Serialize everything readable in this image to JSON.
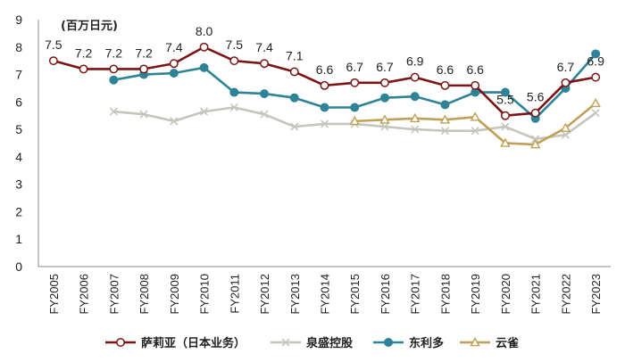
{
  "chart_data": {
    "type": "line",
    "unit_label": "(百万日元)",
    "ylim": [
      0,
      9
    ],
    "yticks": [
      0,
      1,
      2,
      3,
      4,
      5,
      6,
      7,
      8,
      9
    ],
    "categories": [
      "FY2005",
      "FY2006",
      "FY2007",
      "FY2008",
      "FY2009",
      "FY2010",
      "FY2011",
      "FY2012",
      "FY2013",
      "FY2014",
      "FY2015",
      "FY2016",
      "FY2017",
      "FY2018",
      "FY2019",
      "FY2020",
      "FY2021",
      "FY2022",
      "FY2023"
    ],
    "legend_position": "bottom",
    "grid": false,
    "series": [
      {
        "name": "萨莉亚（日本业务）",
        "color": "#7b1414",
        "marker": "circle",
        "values": [
          7.5,
          7.2,
          7.2,
          7.2,
          7.4,
          8.0,
          7.5,
          7.4,
          7.1,
          6.6,
          6.7,
          6.7,
          6.9,
          6.6,
          6.6,
          5.5,
          5.6,
          6.7,
          6.9
        ],
        "labels": [
          "7.5",
          "7.2",
          "7.2",
          "7.2",
          "7.4",
          "8.0",
          "7.5",
          "7.4",
          "7.1",
          "6.6",
          "6.7",
          "6.7",
          "6.9",
          "6.6",
          "6.6",
          "5.5",
          "5.6",
          "6.7",
          "6.9"
        ]
      },
      {
        "name": "泉盛控股",
        "color": "#c4c6bd",
        "marker": "x",
        "values": [
          null,
          null,
          5.65,
          5.55,
          5.3,
          5.65,
          5.8,
          5.55,
          5.1,
          5.2,
          5.2,
          5.1,
          5.0,
          4.95,
          4.95,
          5.1,
          4.65,
          4.8,
          5.6
        ]
      },
      {
        "name": "东利多",
        "color": "#2f8396",
        "marker": "dot",
        "values": [
          null,
          null,
          6.8,
          7.0,
          7.05,
          7.25,
          6.35,
          6.3,
          6.15,
          5.8,
          5.8,
          6.15,
          6.2,
          5.9,
          6.35,
          6.35,
          5.4,
          6.5,
          7.75
        ]
      },
      {
        "name": "云雀",
        "color": "#bfa056",
        "marker": "triangle",
        "values": [
          null,
          null,
          null,
          null,
          null,
          null,
          null,
          null,
          null,
          null,
          5.3,
          5.35,
          5.4,
          5.35,
          5.45,
          4.5,
          4.45,
          5.05,
          5.95
        ]
      }
    ]
  }
}
